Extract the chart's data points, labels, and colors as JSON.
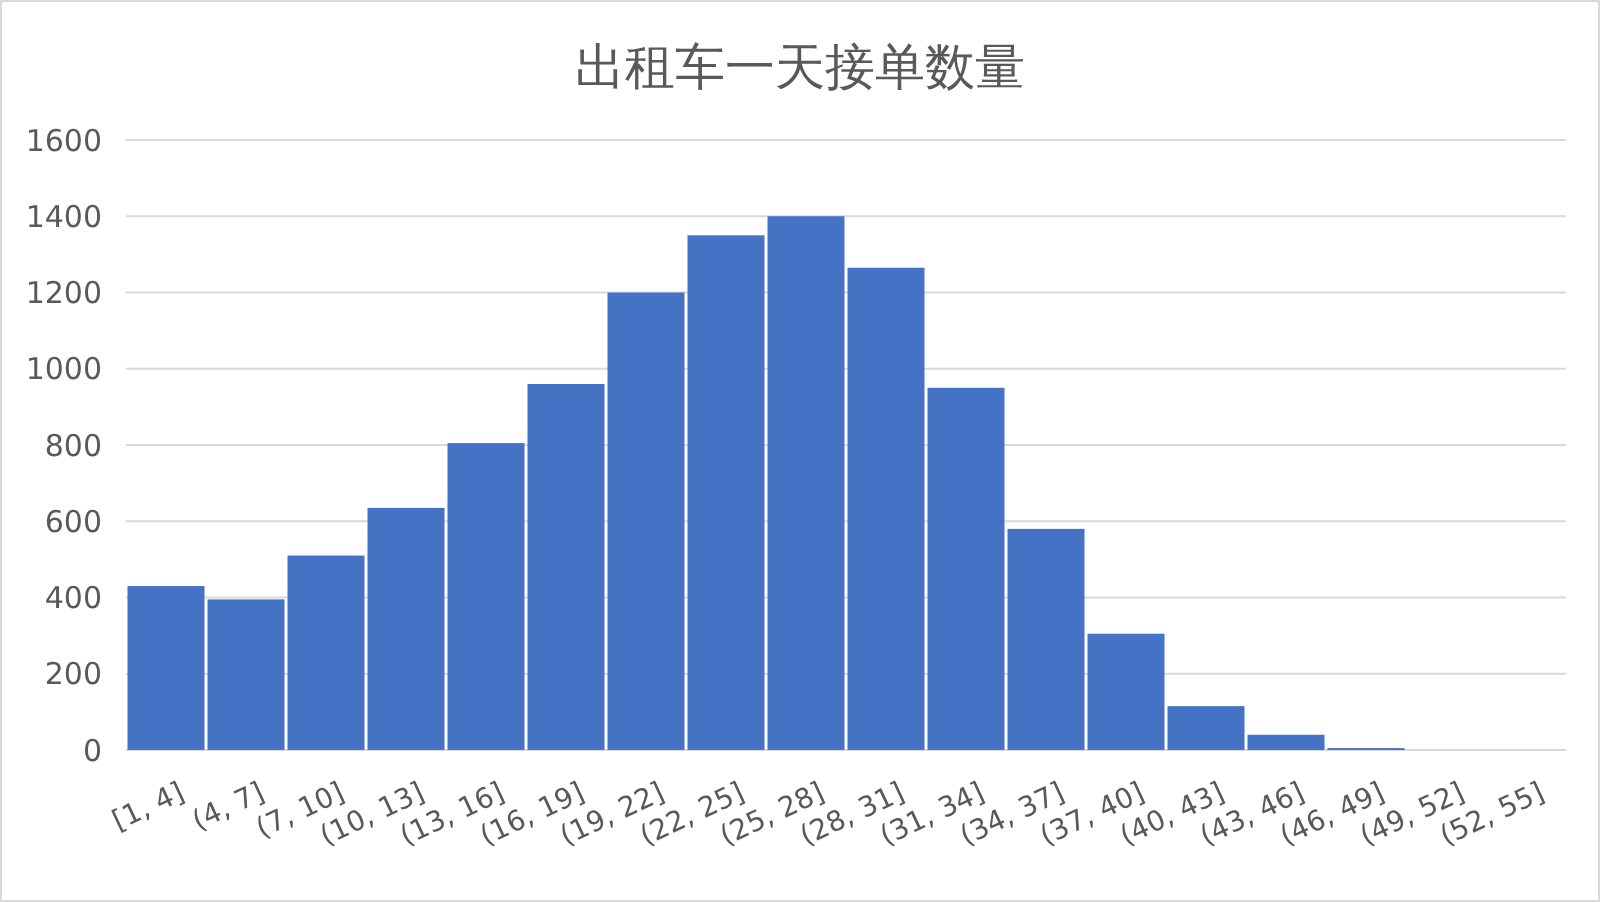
{
  "chart_data": {
    "type": "bar",
    "title": "出租车一天接单数量",
    "categories": [
      "[1, 4]",
      "(4, 7]",
      "(7, 10]",
      "(10, 13]",
      "(13, 16]",
      "(16, 19]",
      "(19, 22]",
      "(22, 25]",
      "(25, 28]",
      "(28, 31]",
      "(31, 34]",
      "(34, 37]",
      "(37, 40]",
      "(40, 43]",
      "(43, 46]",
      "(46, 49]",
      "(49, 52]",
      "(52, 55]"
    ],
    "values": [
      430,
      395,
      510,
      635,
      805,
      960,
      1200,
      1350,
      1400,
      1265,
      950,
      580,
      305,
      115,
      40,
      5,
      0,
      0
    ],
    "color": "#4472c4",
    "ylim": [
      0,
      1600
    ],
    "yticks": [
      0,
      200,
      400,
      600,
      800,
      1000,
      1200,
      1400,
      1600
    ],
    "grid": "y"
  }
}
